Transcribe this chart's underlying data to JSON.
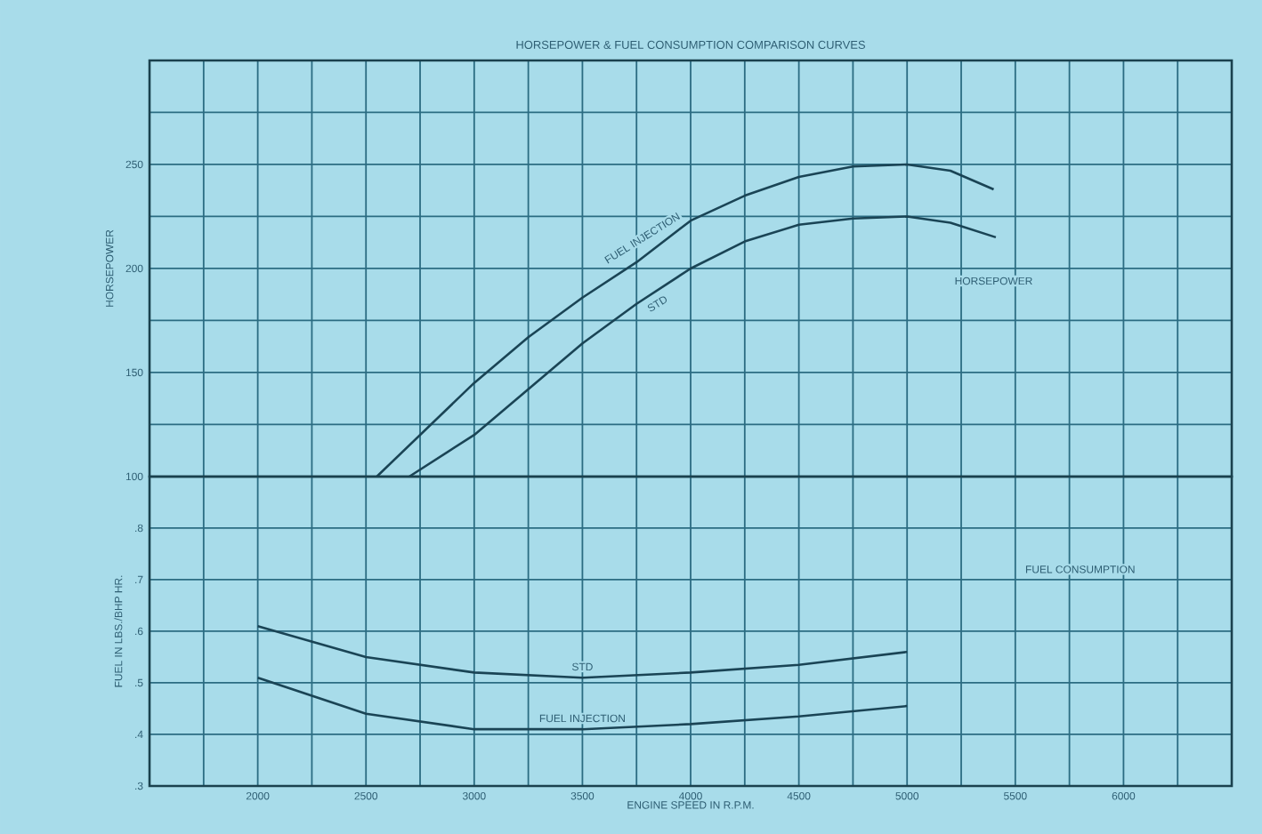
{
  "chart_data": [
    {
      "type": "line",
      "title": "HORSEPOWER & FUEL CONSUMPTION COMPARISON CURVES",
      "ylabel": "HORSEPOWER",
      "annotations": [
        "HORSEPOWER"
      ],
      "xlim": [
        1500,
        6500
      ],
      "ylim": [
        100,
        300
      ],
      "xticks": [
        {
          "value": 1500,
          "label": null
        },
        {
          "value": 1750,
          "label": null
        },
        {
          "value": 2000,
          "label": null
        },
        {
          "value": 2250,
          "label": null
        },
        {
          "value": 2500,
          "label": null
        },
        {
          "value": 2750,
          "label": null
        },
        {
          "value": 3000,
          "label": null
        },
        {
          "value": 3250,
          "label": null
        },
        {
          "value": 3500,
          "label": null
        },
        {
          "value": 3750,
          "label": null
        },
        {
          "value": 4000,
          "label": null
        },
        {
          "value": 4250,
          "label": null
        },
        {
          "value": 4500,
          "label": null
        },
        {
          "value": 4750,
          "label": null
        },
        {
          "value": 5000,
          "label": null
        },
        {
          "value": 5250,
          "label": null
        },
        {
          "value": 5500,
          "label": null
        },
        {
          "value": 5750,
          "label": null
        },
        {
          "value": 6000,
          "label": null
        },
        {
          "value": 6250,
          "label": null
        },
        {
          "value": 6500,
          "label": null
        }
      ],
      "yticks": [
        100,
        {
          "value": 125,
          "label": null
        },
        150,
        {
          "value": 175,
          "label": null
        },
        200,
        {
          "value": 225,
          "label": null
        },
        250,
        {
          "value": 275,
          "label": null
        },
        {
          "value": 300,
          "label": null
        }
      ],
      "tick_labels": "y",
      "grid": true,
      "series": [
        {
          "name": "FUEL INJECTION",
          "color": "#1a4455",
          "x": [
            2550,
            3000,
            3250,
            3500,
            3750,
            4000,
            4250,
            4500,
            4750,
            5000,
            5200,
            5400
          ],
          "values": [
            100,
            145,
            167,
            186,
            203,
            223,
            235,
            244,
            249,
            250,
            247,
            238
          ]
        },
        {
          "name": "STD",
          "color": "#1a4455",
          "x": [
            2700,
            3000,
            3250,
            3500,
            3750,
            4000,
            4250,
            4500,
            4750,
            5000,
            5200,
            5410
          ],
          "values": [
            100,
            120,
            142,
            164,
            183,
            200,
            213,
            221,
            224,
            225,
            222,
            215
          ]
        }
      ]
    },
    {
      "type": "line",
      "xlabel": "ENGINE SPEED IN R.P.M.",
      "ylabel": "FUEL IN LBS./BHP HR.",
      "annotations": [
        "FUEL CONSUMPTION"
      ],
      "xlim": [
        1500,
        6500
      ],
      "ylim": [
        0.3,
        0.9
      ],
      "xticks": [
        {
          "value": 1500,
          "label": null
        },
        {
          "value": 1750,
          "label": null
        },
        2000,
        {
          "value": 2250,
          "label": null
        },
        2500,
        {
          "value": 2750,
          "label": null
        },
        3000,
        {
          "value": 3250,
          "label": null
        },
        3500,
        {
          "value": 3750,
          "label": null
        },
        4000,
        {
          "value": 4250,
          "label": null
        },
        4500,
        {
          "value": 4750,
          "label": null
        },
        5000,
        {
          "value": 5250,
          "label": null
        },
        5500,
        {
          "value": 5750,
          "label": null
        },
        6000,
        {
          "value": 6250,
          "label": null
        },
        {
          "value": 6500,
          "label": null
        }
      ],
      "yticks": [
        {
          "value": 0.3,
          "label": ".3"
        },
        {
          "value": 0.4,
          "label": ".4"
        },
        {
          "value": 0.5,
          "label": ".5"
        },
        {
          "value": 0.6,
          "label": ".6"
        },
        {
          "value": 0.7,
          "label": ".7"
        },
        {
          "value": 0.8,
          "label": ".8"
        },
        {
          "value": 0.9,
          "label": null
        }
      ],
      "grid": true,
      "series": [
        {
          "name": "STD",
          "color": "#1a4455",
          "x": [
            2000,
            2500,
            3000,
            3500,
            4000,
            4500,
            5000
          ],
          "values": [
            0.61,
            0.55,
            0.52,
            0.51,
            0.52,
            0.535,
            0.56
          ]
        },
        {
          "name": "FUEL INJECTION",
          "color": "#1a4455",
          "x": [
            2000,
            2500,
            3000,
            3500,
            4000,
            4500,
            5000
          ],
          "values": [
            0.51,
            0.44,
            0.41,
            0.41,
            0.42,
            0.435,
            0.455
          ]
        }
      ]
    }
  ]
}
